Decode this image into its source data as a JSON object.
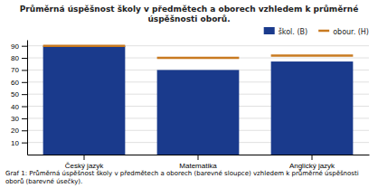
{
  "chart_data": {
    "type": "bar",
    "title": "Průměrná úspěšnost školy v předmětech a oborech vzhledem k průměrné úspěšnosti oborů.",
    "caption": "Graf 1: Průměrná úspěšnost školy v předmětech a oborech (barevné sloupce) vzhledem k průměrné úspěšnosti oborů (barevné úsečky).",
    "categories": [
      "Český jazyk",
      "Matematika",
      "Anglický jazyk"
    ],
    "series": [
      {
        "name": "škol. (B)",
        "type": "bar",
        "color": "#1a3a8c",
        "values": [
          90,
          70,
          77
        ]
      },
      {
        "name": "obour. (H)",
        "type": "segment",
        "color": "#c87a20",
        "values": [
          90,
          80,
          82
        ]
      }
    ],
    "ylim": [
      0,
      95
    ],
    "yticks": [
      10,
      20,
      30,
      40,
      50,
      60,
      70,
      80,
      90
    ],
    "grid": true,
    "legend": "upper right"
  }
}
